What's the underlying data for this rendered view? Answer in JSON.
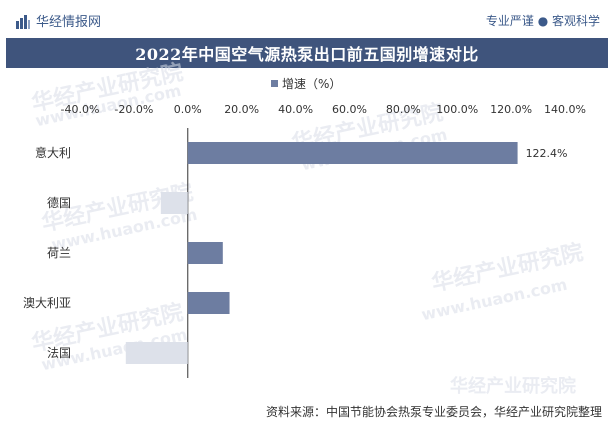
{
  "header": {
    "brand_name": "华经情报网",
    "slogan": "专业严谨 ● 客观科学"
  },
  "watermark": {
    "text": "华经产业研究院",
    "url": "www.huaon.com"
  },
  "source": "资料来源：中国节能协会热泵专业委员会，华经产业研究院整理",
  "colors": {
    "title_bg": "#3f547c",
    "positive_bar": "#6d7da1",
    "negative_bar": "#dde1ea",
    "axis": "#333333"
  },
  "chart_data": {
    "type": "bar",
    "orientation": "horizontal",
    "title": "2022年中国空气源热泵出口前五国别增速对比",
    "xlabel": "",
    "ylabel": "",
    "xlim": [
      -40,
      140
    ],
    "xticks": [
      -40,
      -20,
      0,
      20,
      40,
      60,
      80,
      100,
      120,
      140
    ],
    "tick_labels": [
      "-40.0%",
      "-20.0%",
      "0.0%",
      "20.0%",
      "40.0%",
      "60.0%",
      "80.0%",
      "100.0%",
      "120.0%",
      "140.0%"
    ],
    "tick_position": "top",
    "legend_position": "top-center",
    "grid": false,
    "categories": [
      "意大利",
      "德国",
      "荷兰",
      "澳大利亚",
      "法国"
    ],
    "series": [
      {
        "name": "增速（%）",
        "values": [
          122.4,
          -10,
          13,
          15.5,
          -23
        ]
      }
    ],
    "data_labels": [
      "122.4%",
      "",
      "",
      "",
      ""
    ]
  }
}
